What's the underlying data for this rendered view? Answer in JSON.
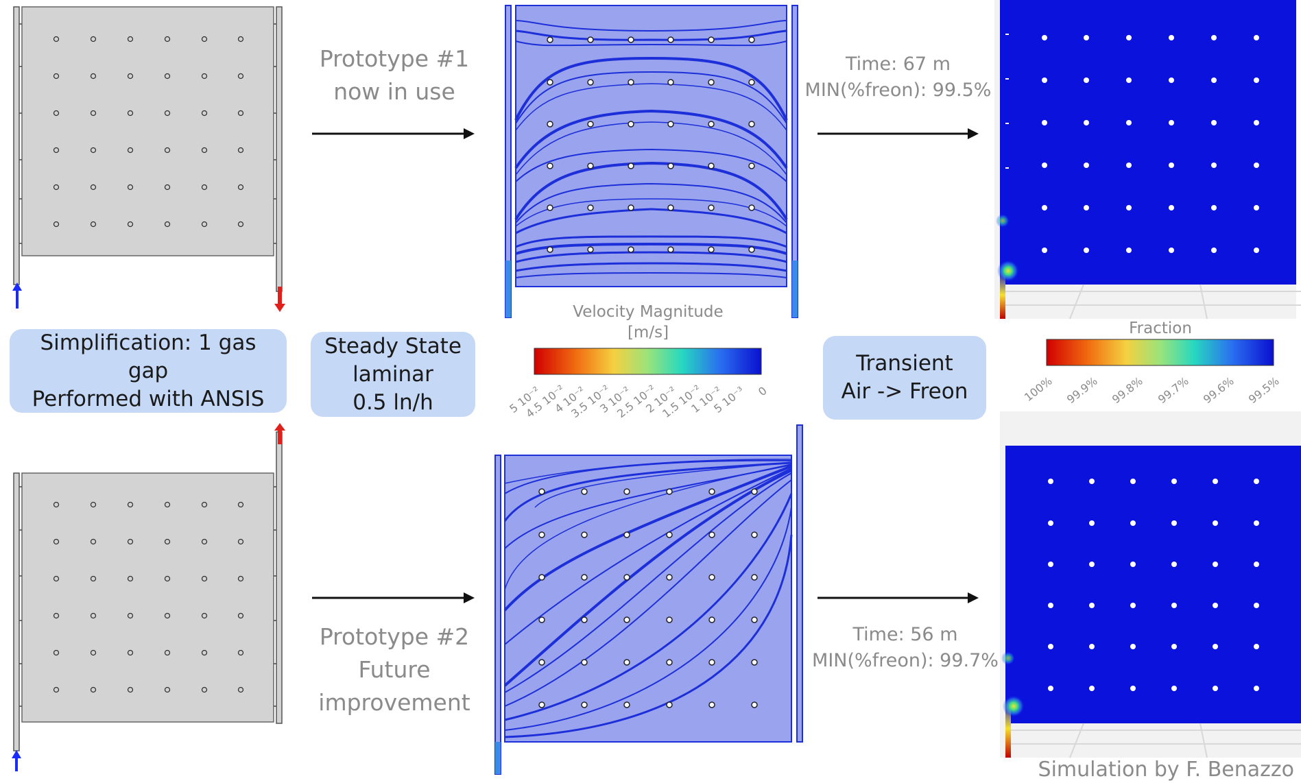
{
  "prototype1": {
    "line1": "Prototype #1",
    "line2": "now in use"
  },
  "prototype2": {
    "line1": "Prototype #2",
    "line2": "Future",
    "line3": "improvement"
  },
  "pill_simplification": {
    "line1": "Simplification: 1 gas",
    "line2": "gap",
    "line3": "Performed with ANSIS"
  },
  "pill_steady": {
    "line1": "Steady State",
    "line2": "laminar",
    "line3": "0.5 ln/h"
  },
  "pill_transient": {
    "line1": "Transient",
    "line2": "Air -> Freon"
  },
  "velocity_bar": {
    "title": "Velocity Magnitude",
    "unit": "[m/s]",
    "ticks": [
      "5 10⁻²",
      "4.5 10⁻²",
      "4 10⁻²",
      "3.5 10⁻²",
      "3 10⁻²",
      "2.5 10⁻²",
      "2 10⁻²",
      "1.5 10⁻²",
      "1 10⁻²",
      "5 10⁻³",
      "0"
    ]
  },
  "fraction_bar": {
    "title": "Fraction",
    "ticks": [
      "100%",
      "99.9%",
      "99.8%",
      "99.7%",
      "99.6%",
      "99.5%"
    ]
  },
  "result1": {
    "time": "Time: 67 m",
    "min": "MIN(%freon): 99.5%"
  },
  "result2": {
    "time": "Time: 56 m",
    "min": "MIN(%freon): 99.7%"
  },
  "credit": "Simulation by F. Benazzo",
  "colors": {
    "chamber_gray": "#d3d3d3",
    "flow_field": "#9aa3ee",
    "streamline": "#1c2fd8",
    "freon_blue": "#0a12dc",
    "inlet_blue": "#1a2bff",
    "outlet_red": "#e0201a",
    "pill": "#c5d8f5"
  }
}
